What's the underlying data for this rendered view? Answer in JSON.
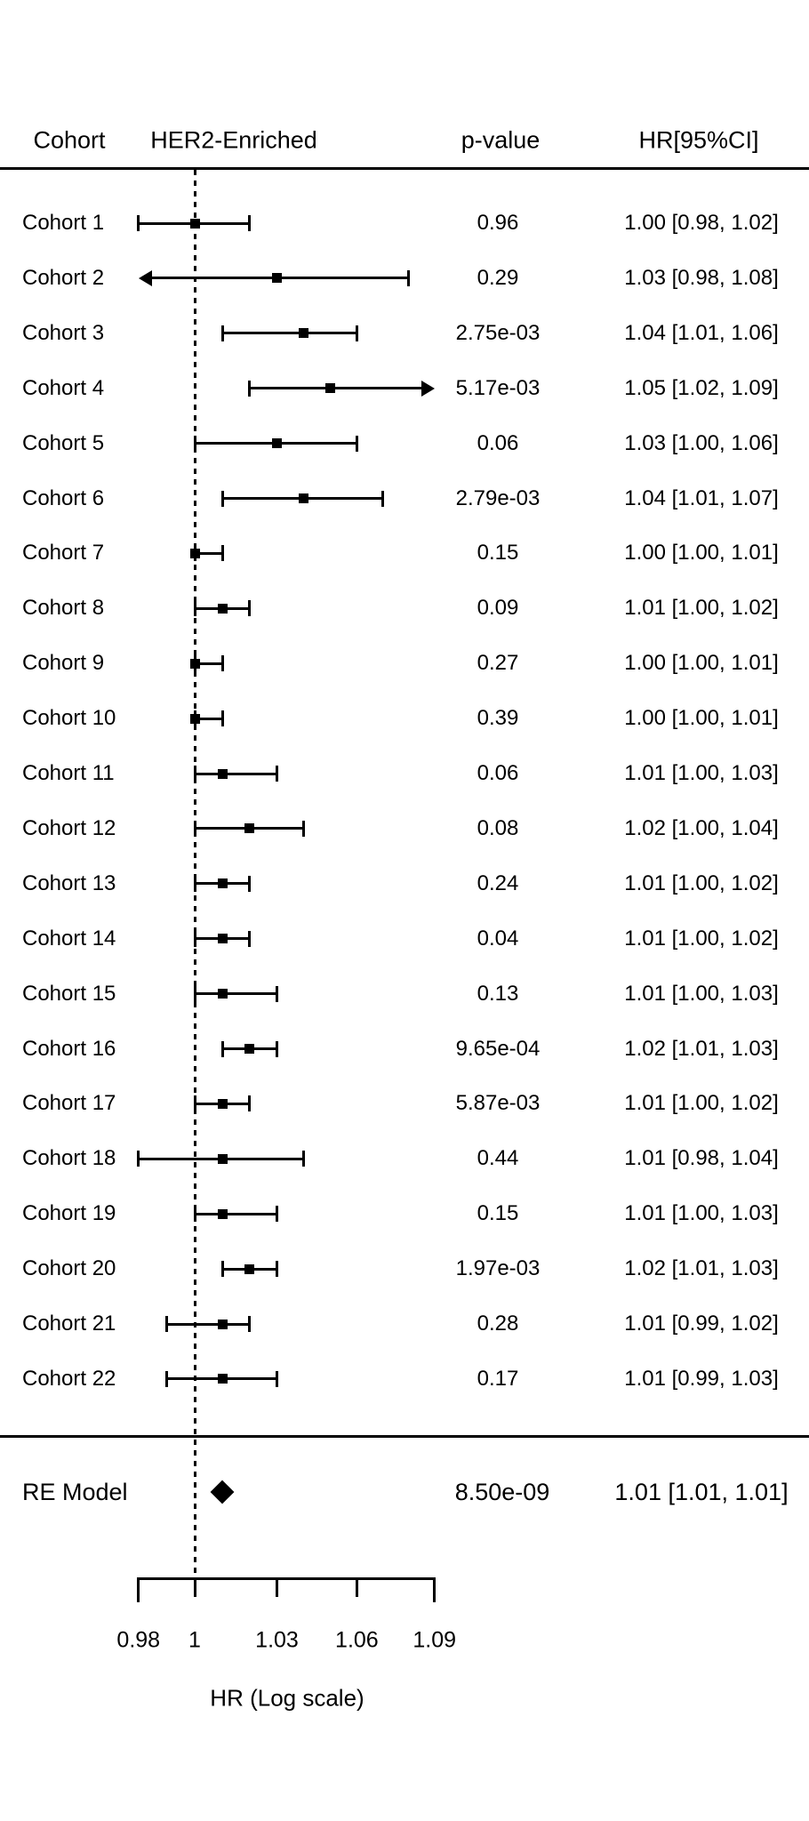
{
  "header": {
    "cohort": "Cohort",
    "group": "HER2-Enriched",
    "pvalue": "p-value",
    "hr_ci": "HR[95%CI]"
  },
  "chart_data": {
    "type": "forest",
    "x_axis": {
      "title": "HR (Log scale)",
      "scale": "log",
      "range": [
        0.98,
        1.09
      ],
      "ticks": [
        0.98,
        1,
        1.03,
        1.06,
        1.09
      ],
      "tick_labels": [
        "0.98",
        "1",
        "1.03",
        "1.06",
        "1.09"
      ],
      "reference_line": 1
    },
    "rows": [
      {
        "label": "Cohort 1",
        "hr": 1.0,
        "ci_low": 0.98,
        "ci_high": 1.02,
        "p_value": "0.96",
        "hr_ci_text": "1.00 [0.98, 1.02]",
        "arrow_low": false,
        "arrow_high": false
      },
      {
        "label": "Cohort 2",
        "hr": 1.03,
        "ci_low": 0.98,
        "ci_high": 1.08,
        "p_value": "0.29",
        "hr_ci_text": "1.03 [0.98, 1.08]",
        "arrow_low": true,
        "arrow_high": false
      },
      {
        "label": "Cohort 3",
        "hr": 1.04,
        "ci_low": 1.01,
        "ci_high": 1.06,
        "p_value": "2.75e-03",
        "hr_ci_text": "1.04 [1.01, 1.06]",
        "arrow_low": false,
        "arrow_high": false
      },
      {
        "label": "Cohort 4",
        "hr": 1.05,
        "ci_low": 1.02,
        "ci_high": 1.09,
        "p_value": "5.17e-03",
        "hr_ci_text": "1.05 [1.02, 1.09]",
        "arrow_low": false,
        "arrow_high": true
      },
      {
        "label": "Cohort 5",
        "hr": 1.03,
        "ci_low": 1.0,
        "ci_high": 1.06,
        "p_value": "0.06",
        "hr_ci_text": "1.03 [1.00, 1.06]",
        "arrow_low": false,
        "arrow_high": false
      },
      {
        "label": "Cohort 6",
        "hr": 1.04,
        "ci_low": 1.01,
        "ci_high": 1.07,
        "p_value": "2.79e-03",
        "hr_ci_text": "1.04 [1.01, 1.07]",
        "arrow_low": false,
        "arrow_high": false
      },
      {
        "label": "Cohort 7",
        "hr": 1.0,
        "ci_low": 1.0,
        "ci_high": 1.01,
        "p_value": "0.15",
        "hr_ci_text": "1.00 [1.00, 1.01]",
        "arrow_low": false,
        "arrow_high": false
      },
      {
        "label": "Cohort 8",
        "hr": 1.01,
        "ci_low": 1.0,
        "ci_high": 1.02,
        "p_value": "0.09",
        "hr_ci_text": "1.01 [1.00, 1.02]",
        "arrow_low": false,
        "arrow_high": false
      },
      {
        "label": "Cohort 9",
        "hr": 1.0,
        "ci_low": 1.0,
        "ci_high": 1.01,
        "p_value": "0.27",
        "hr_ci_text": "1.00 [1.00, 1.01]",
        "arrow_low": false,
        "arrow_high": false
      },
      {
        "label": "Cohort 10",
        "hr": 1.0,
        "ci_low": 1.0,
        "ci_high": 1.01,
        "p_value": "0.39",
        "hr_ci_text": "1.00 [1.00, 1.01]",
        "arrow_low": false,
        "arrow_high": false
      },
      {
        "label": "Cohort 11",
        "hr": 1.01,
        "ci_low": 1.0,
        "ci_high": 1.03,
        "p_value": "0.06",
        "hr_ci_text": "1.01 [1.00, 1.03]",
        "arrow_low": false,
        "arrow_high": false
      },
      {
        "label": "Cohort 12",
        "hr": 1.02,
        "ci_low": 1.0,
        "ci_high": 1.04,
        "p_value": "0.08",
        "hr_ci_text": "1.02 [1.00, 1.04]",
        "arrow_low": false,
        "arrow_high": false
      },
      {
        "label": "Cohort 13",
        "hr": 1.01,
        "ci_low": 1.0,
        "ci_high": 1.02,
        "p_value": "0.24",
        "hr_ci_text": "1.01 [1.00, 1.02]",
        "arrow_low": false,
        "arrow_high": false
      },
      {
        "label": "Cohort 14",
        "hr": 1.01,
        "ci_low": 1.0,
        "ci_high": 1.02,
        "p_value": "0.04",
        "hr_ci_text": "1.01 [1.00, 1.02]",
        "arrow_low": false,
        "arrow_high": false
      },
      {
        "label": "Cohort 15",
        "hr": 1.01,
        "ci_low": 1.0,
        "ci_high": 1.03,
        "p_value": "0.13",
        "hr_ci_text": "1.01 [1.00, 1.03]",
        "arrow_low": false,
        "arrow_high": false
      },
      {
        "label": "Cohort 16",
        "hr": 1.02,
        "ci_low": 1.01,
        "ci_high": 1.03,
        "p_value": "9.65e-04",
        "hr_ci_text": "1.02 [1.01, 1.03]",
        "arrow_low": false,
        "arrow_high": false
      },
      {
        "label": "Cohort 17",
        "hr": 1.01,
        "ci_low": 1.0,
        "ci_high": 1.02,
        "p_value": "5.87e-03",
        "hr_ci_text": "1.01 [1.00, 1.02]",
        "arrow_low": false,
        "arrow_high": false
      },
      {
        "label": "Cohort 18",
        "hr": 1.01,
        "ci_low": 0.98,
        "ci_high": 1.04,
        "p_value": "0.44",
        "hr_ci_text": "1.01 [0.98, 1.04]",
        "arrow_low": false,
        "arrow_high": false
      },
      {
        "label": "Cohort 19",
        "hr": 1.01,
        "ci_low": 1.0,
        "ci_high": 1.03,
        "p_value": "0.15",
        "hr_ci_text": "1.01 [1.00, 1.03]",
        "arrow_low": false,
        "arrow_high": false
      },
      {
        "label": "Cohort 20",
        "hr": 1.02,
        "ci_low": 1.01,
        "ci_high": 1.03,
        "p_value": "1.97e-03",
        "hr_ci_text": "1.02 [1.01, 1.03]",
        "arrow_low": false,
        "arrow_high": false
      },
      {
        "label": "Cohort 21",
        "hr": 1.01,
        "ci_low": 0.99,
        "ci_high": 1.02,
        "p_value": "0.28",
        "hr_ci_text": "1.01 [0.99, 1.02]",
        "arrow_low": false,
        "arrow_high": false
      },
      {
        "label": "Cohort 22",
        "hr": 1.01,
        "ci_low": 0.99,
        "ci_high": 1.03,
        "p_value": "0.17",
        "hr_ci_text": "1.01 [0.99, 1.03]",
        "arrow_low": false,
        "arrow_high": false
      }
    ],
    "summary": {
      "label": "RE Model",
      "hr": 1.01,
      "ci_low": 1.01,
      "ci_high": 1.01,
      "p_value": "8.50e-09",
      "hr_ci_text": "1.01 [1.01, 1.01]",
      "marker": "diamond"
    }
  },
  "colors": {
    "foreground": "#000000",
    "background": "#ffffff"
  }
}
